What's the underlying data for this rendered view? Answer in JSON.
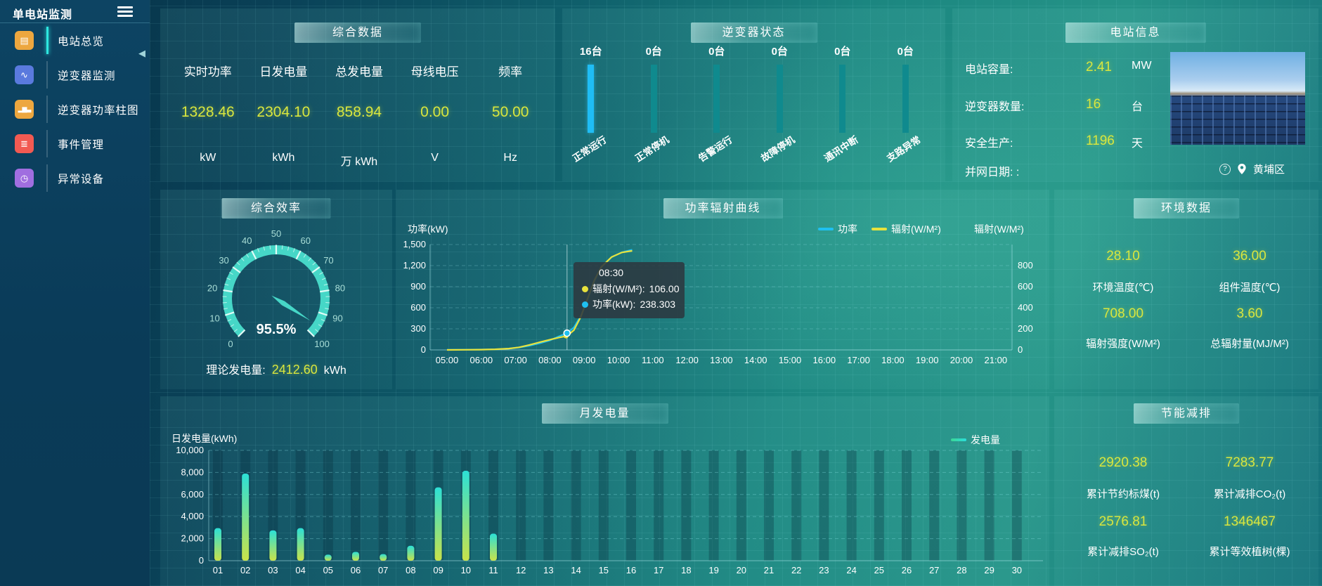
{
  "sidebar": {
    "title": "单电站监测",
    "items": [
      {
        "label": "电站总览",
        "icon": "station-overview-icon",
        "glyph": "▤",
        "active": true
      },
      {
        "label": "逆变器监测",
        "icon": "inverter-monitor-icon",
        "glyph": "∿",
        "active": false
      },
      {
        "label": "逆变器功率柱图",
        "icon": "inverter-power-bars-icon",
        "glyph": "▂▆▃",
        "active": false
      },
      {
        "label": "事件管理",
        "icon": "event-management-icon",
        "glyph": "≣",
        "active": false
      },
      {
        "label": "异常设备",
        "icon": "abnormal-device-icon",
        "glyph": "◷",
        "active": false
      }
    ]
  },
  "summary": {
    "title": "综合数据",
    "collapse_arrow": "◀",
    "metrics": [
      {
        "label": "实时功率",
        "value": "1328.46",
        "unit": "kW"
      },
      {
        "label": "日发电量",
        "value": "2304.10",
        "unit": "kWh"
      },
      {
        "label": "总发电量",
        "value": "858.94",
        "unit": "万 kWh"
      },
      {
        "label": "母线电压",
        "value": "0.00",
        "unit": "V"
      },
      {
        "label": "频率",
        "value": "50.00",
        "unit": "Hz"
      }
    ]
  },
  "station_info": {
    "title": "电站信息",
    "rows": [
      {
        "label": "电站容量:",
        "value": "2.41",
        "unit": "MW"
      },
      {
        "label": "逆变器数量:",
        "value": "16",
        "unit": "台"
      },
      {
        "label": "安全生产:",
        "value": "1196",
        "unit": "天"
      },
      {
        "label": "并网日期: :",
        "value": "",
        "unit": ""
      }
    ],
    "photo": "solar-plant-photo",
    "help_glyph": "?",
    "location": "黄埔区"
  },
  "efficiency": {
    "title": "综合效率",
    "theory_label": "理论发电量:",
    "theory_value": "2412.60",
    "theory_unit": "kWh"
  },
  "environment": {
    "title": "环境数据",
    "cells": [
      {
        "value": "28.10",
        "label": "环境温度(℃)"
      },
      {
        "value": "36.00",
        "label": "组件温度(℃)"
      },
      {
        "value": "708.00",
        "label": "辐射强度(W/M²)"
      },
      {
        "value": "3.60",
        "label": "总辐射量(MJ/M²)"
      }
    ]
  },
  "saving": {
    "title": "节能减排",
    "cells": [
      {
        "value": "2920.38",
        "label": "累计节约标煤(t)"
      },
      {
        "value": "7283.77",
        "label": "累计减排CO₂(t)"
      },
      {
        "value": "2576.81",
        "label": "累计减排SO₂(t)"
      },
      {
        "value": "1346467",
        "label": "累计等效植树(棵)"
      }
    ]
  },
  "chart_data": [
    {
      "id": "inverter_status",
      "type": "bar",
      "title": "逆变器状态",
      "categories": [
        "正常运行",
        "正常停机",
        "告警运行",
        "故障停机",
        "通讯中断",
        "支路异常"
      ],
      "values": [
        16,
        0,
        0,
        0,
        0,
        0
      ],
      "unit": "台",
      "highlight_color": "#1fbdf5",
      "bar_color": "#0f8a8e"
    },
    {
      "id": "efficiency_gauge",
      "type": "gauge",
      "value": 95.5,
      "display": "95.5%",
      "min": 0,
      "max": 100,
      "tick_labels": [
        0,
        10,
        20,
        30,
        40,
        50,
        60,
        70,
        80,
        90,
        100
      ],
      "color": "#46d7c7"
    },
    {
      "id": "power_radiation",
      "type": "line",
      "title": "功率辐射曲线",
      "ylabel_left": "功率(kW)",
      "ylabel_right": "辐射(W/M²)",
      "ylim_left": [
        0,
        1500
      ],
      "ylim_right": [
        0,
        800
      ],
      "yticks_left": [
        "0",
        "300",
        "600",
        "900",
        "1,200",
        "1,500"
      ],
      "yticks_right": [
        "0",
        "200",
        "400",
        "600",
        "800"
      ],
      "x_labels": [
        "05:00",
        "06:00",
        "07:00",
        "08:00",
        "09:00",
        "10:00",
        "11:00",
        "12:00",
        "13:00",
        "14:00",
        "15:00",
        "16:00",
        "17:00",
        "18:00",
        "19:00",
        "20:00",
        "21:00"
      ],
      "legend": [
        {
          "name": "功率",
          "color": "#1fc0f0"
        },
        {
          "name": "辐射(W/M²)",
          "color": "#e8e23c"
        }
      ],
      "series": [
        {
          "name": "功率",
          "axis": "left",
          "color": "#1fc0f0",
          "points": [
            [
              5,
              2
            ],
            [
              5.5,
              3
            ],
            [
              6,
              5
            ],
            [
              6.4,
              8
            ],
            [
              6.8,
              18
            ],
            [
              7.1,
              35
            ],
            [
              7.4,
              60
            ],
            [
              7.7,
              95
            ],
            [
              8,
              135
            ],
            [
              8.25,
              190
            ],
            [
              8.5,
              238.3
            ],
            [
              8.7,
              320
            ],
            [
              8.9,
              480
            ],
            [
              9.1,
              720
            ],
            [
              9.3,
              980
            ],
            [
              9.5,
              1180
            ],
            [
              9.8,
              1320
            ],
            [
              10.1,
              1390
            ],
            [
              10.4,
              1425
            ]
          ]
        },
        {
          "name": "辐射(W/M²)",
          "axis": "right",
          "color": "#e8e23c",
          "points": [
            [
              5,
              0
            ],
            [
              5.5,
              1
            ],
            [
              6,
              2
            ],
            [
              6.4,
              5
            ],
            [
              6.8,
              10
            ],
            [
              7.1,
              20
            ],
            [
              7.4,
              38
            ],
            [
              7.7,
              58
            ],
            [
              8,
              78
            ],
            [
              8.25,
              93
            ],
            [
              8.5,
              106
            ],
            [
              8.7,
              150
            ],
            [
              8.9,
              250
            ],
            [
              9.1,
              390
            ],
            [
              9.3,
              530
            ],
            [
              9.5,
              630
            ],
            [
              9.8,
              705
            ],
            [
              10.1,
              740
            ],
            [
              10.4,
              752
            ]
          ]
        }
      ],
      "tooltip": {
        "time": "08:30",
        "x_hour": 8.5,
        "rows": [
          {
            "label": "辐射(W/M²):",
            "value": "106.00",
            "series": "radiation"
          },
          {
            "label": "功率(kW):",
            "value": "238.303",
            "series": "power"
          }
        ]
      }
    },
    {
      "id": "monthly_energy",
      "type": "bar",
      "title": "月发电量",
      "ylabel": "日发电量(kWh)",
      "ylim": [
        0,
        10000
      ],
      "yticks": [
        "0",
        "2,000",
        "4,000",
        "6,000",
        "8,000",
        "10,000"
      ],
      "categories": [
        "01",
        "02",
        "03",
        "04",
        "05",
        "06",
        "07",
        "08",
        "09",
        "10",
        "11",
        "12",
        "13",
        "14",
        "15",
        "16",
        "17",
        "18",
        "19",
        "20",
        "21",
        "22",
        "23",
        "24",
        "25",
        "26",
        "27",
        "28",
        "29",
        "30"
      ],
      "values": [
        2950,
        7900,
        2750,
        2950,
        550,
        800,
        600,
        1350,
        6650,
        8150,
        2450,
        0,
        0,
        0,
        0,
        0,
        0,
        0,
        0,
        0,
        0,
        0,
        0,
        0,
        0,
        0,
        0,
        0,
        0,
        0
      ],
      "legend": [
        {
          "name": "发电量"
        }
      ],
      "bar_gradient": [
        "#2ce0d6",
        "#c9e24a"
      ]
    }
  ]
}
